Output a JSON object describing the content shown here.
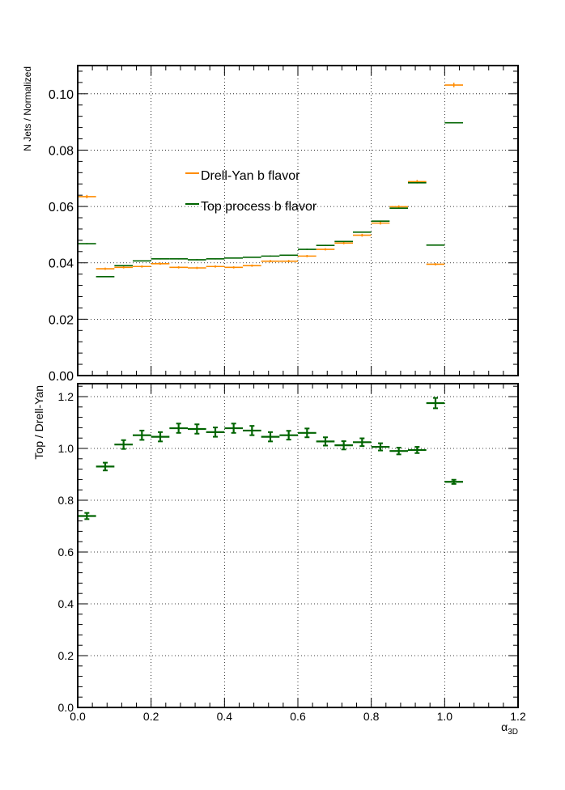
{
  "chart_data": [
    {
      "type": "scatter",
      "panel": "top",
      "title": "",
      "xlabel": "",
      "ylabel": "N Jets / Normalized",
      "xlim": [
        0,
        1.2
      ],
      "ylim": [
        0,
        0.11
      ],
      "x_ticks": [
        0,
        0.2,
        0.4,
        0.6,
        0.8,
        1.0,
        1.2
      ],
      "y_ticks": [
        0.0,
        0.02,
        0.04,
        0.06,
        0.08,
        0.1
      ],
      "y_tick_labels": [
        "0.00",
        "0.02",
        "0.04",
        "0.06",
        "0.08",
        "0.10"
      ],
      "grid": true,
      "legend_position": "center-left",
      "bin_width": 0.05,
      "x": [
        0.025,
        0.075,
        0.125,
        0.175,
        0.225,
        0.275,
        0.325,
        0.375,
        0.425,
        0.475,
        0.525,
        0.575,
        0.625,
        0.675,
        0.725,
        0.775,
        0.825,
        0.875,
        0.925,
        0.975,
        1.025
      ],
      "series": [
        {
          "name": "Drell-Yan b flavor",
          "color": "#ff8c00",
          "values": [
            0.0635,
            0.0379,
            0.0384,
            0.0387,
            0.0397,
            0.0384,
            0.0382,
            0.0387,
            0.0384,
            0.039,
            0.0406,
            0.0406,
            0.0424,
            0.0448,
            0.047,
            0.0498,
            0.0541,
            0.0599,
            0.0688,
            0.0395,
            0.1031
          ],
          "errors": [
            0.0006,
            0.0004,
            0.0004,
            0.0004,
            0.0004,
            0.0004,
            0.0004,
            0.0004,
            0.0004,
            0.0004,
            0.0004,
            0.0004,
            0.0004,
            0.0004,
            0.0004,
            0.0005,
            0.0005,
            0.0005,
            0.0006,
            0.0004,
            0.0008
          ]
        },
        {
          "name": "Top process b flavor",
          "color": "#006400",
          "values": [
            0.0468,
            0.0351,
            0.039,
            0.0407,
            0.0414,
            0.0414,
            0.0411,
            0.0414,
            0.0417,
            0.042,
            0.0424,
            0.0427,
            0.0448,
            0.0462,
            0.0476,
            0.0509,
            0.0548,
            0.0594,
            0.0684,
            0.0463,
            0.0897
          ],
          "errors": [
            0.0002,
            0.0002,
            0.0002,
            0.0002,
            0.0002,
            0.0002,
            0.0002,
            0.0002,
            0.0002,
            0.0002,
            0.0002,
            0.0002,
            0.0002,
            0.0002,
            0.0002,
            0.0002,
            0.0002,
            0.0002,
            0.0002,
            0.0002,
            0.0002
          ]
        }
      ]
    },
    {
      "type": "scatter",
      "panel": "bottom",
      "title": "",
      "xlabel": "α3D",
      "xlabel_main": "α",
      "xlabel_sub": "3D",
      "ylabel": "Top / Drell-Yan",
      "xlim": [
        0,
        1.2
      ],
      "ylim": [
        0,
        1.25
      ],
      "x_ticks": [
        0,
        0.2,
        0.4,
        0.6,
        0.8,
        1.0,
        1.2
      ],
      "x_tick_labels": [
        "0.0",
        "0.2",
        "0.4",
        "0.6",
        "0.8",
        "1.0",
        "1.2"
      ],
      "y_ticks": [
        0,
        0.2,
        0.4,
        0.6,
        0.8,
        1.0,
        1.2
      ],
      "y_tick_labels": [
        "0.0",
        "0.2",
        "0.4",
        "0.6",
        "0.8",
        "1.0",
        "1.2"
      ],
      "grid": true,
      "bin_width": 0.05,
      "x": [
        0.025,
        0.075,
        0.125,
        0.175,
        0.225,
        0.275,
        0.325,
        0.375,
        0.425,
        0.475,
        0.525,
        0.575,
        0.625,
        0.675,
        0.725,
        0.775,
        0.825,
        0.875,
        0.925,
        0.975,
        1.025
      ],
      "series": [
        {
          "name": "",
          "color": "#006400",
          "values": [
            0.739,
            0.93,
            1.015,
            1.051,
            1.045,
            1.078,
            1.075,
            1.063,
            1.078,
            1.069,
            1.045,
            1.051,
            1.06,
            1.027,
            1.012,
            1.024,
            1.006,
            0.99,
            0.994,
            1.175,
            0.871
          ],
          "errors": [
            0.012,
            0.015,
            0.017,
            0.018,
            0.018,
            0.018,
            0.018,
            0.018,
            0.018,
            0.018,
            0.018,
            0.017,
            0.017,
            0.016,
            0.016,
            0.015,
            0.014,
            0.013,
            0.012,
            0.02,
            0.008
          ]
        }
      ]
    }
  ]
}
